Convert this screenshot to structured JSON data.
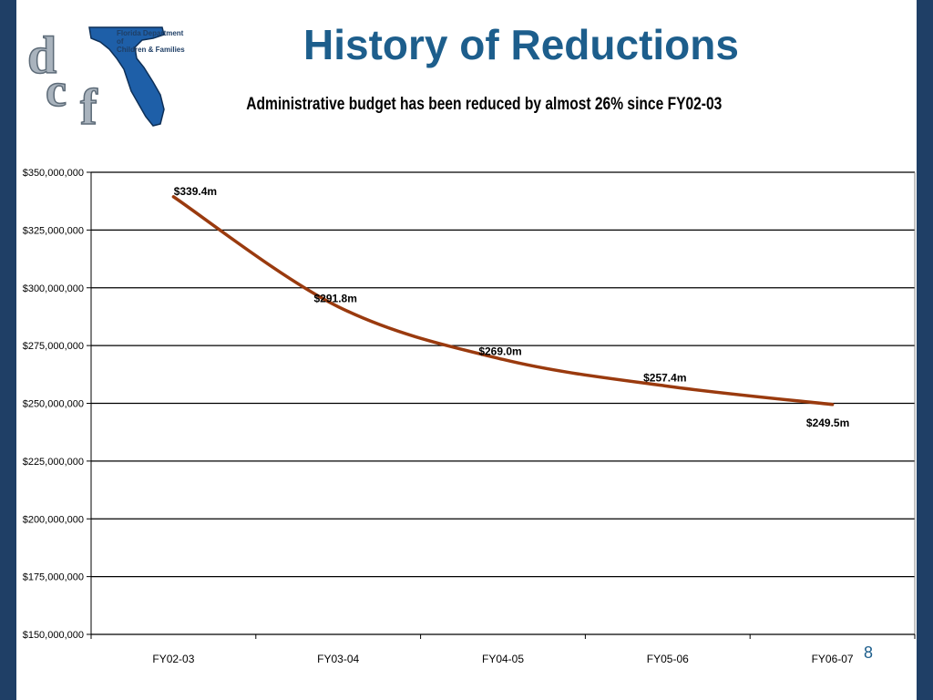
{
  "header": {
    "org_name_line1": "Florida Department of",
    "org_name_line2": "Children & Families",
    "logo_text": "dcf",
    "title": "History of Reductions",
    "subtitle": "Administrative budget has been reduced by almost 26% since FY02-03"
  },
  "footer": {
    "page_number": "8"
  },
  "colors": {
    "background": "#1f3f66",
    "title": "#1d5e8c",
    "line": "#9a3a0e",
    "grid": "#000000"
  },
  "chart_data": {
    "type": "line",
    "title": "",
    "xlabel": "",
    "ylabel": "",
    "categories": [
      "FY02-03",
      "FY03-04",
      "FY04-05",
      "FY05-06",
      "FY06-07"
    ],
    "series": [
      {
        "values": [
          339400000,
          291800000,
          269000000,
          257400000,
          249500000
        ],
        "data_labels": [
          "$339.4m",
          "$291.8m",
          "$269.0m",
          "$257.4m",
          "$249.5m"
        ]
      }
    ],
    "ylim": [
      150000000,
      350000000
    ],
    "ytick_labels": [
      "$150,000,000",
      "$175,000,000",
      "$200,000,000",
      "$225,000,000",
      "$250,000,000",
      "$275,000,000",
      "$300,000,000",
      "$325,000,000",
      "$350,000,000"
    ],
    "grid": true,
    "legend": "none",
    "smooth": true
  }
}
